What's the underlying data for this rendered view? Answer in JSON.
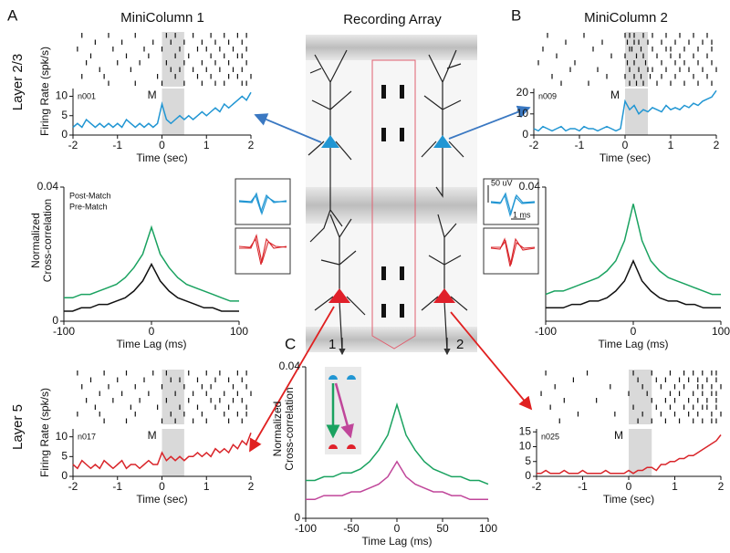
{
  "figure": {
    "panel_a": "A",
    "panel_b": "B",
    "panel_c": "C",
    "minicolumn_1": "MiniColumn 1",
    "minicolumn_2": "MiniColumn 2",
    "array_title": "Recording Array",
    "layer_23": "Layer 2/3",
    "layer_5": "Layer 5",
    "column_1": "1",
    "column_2": "2",
    "scale_voltage": "50 uV",
    "scale_time": "1 ms"
  },
  "chart_data": [
    {
      "type": "raster",
      "xlim": [
        -2,
        2
      ],
      "shade": [
        0,
        0.5
      ],
      "trials": [
        [
          -1.8,
          -1.2,
          -0.6,
          0.1,
          0.3,
          0.7,
          1.1,
          1.4,
          1.7,
          1.9
        ],
        [
          -1.5,
          -0.9,
          -0.2,
          0.2,
          0.5,
          0.9,
          1.2,
          1.5,
          1.8
        ],
        [
          -1.9,
          -1.1,
          -0.4,
          0.0,
          0.4,
          0.8,
          1.0,
          1.3,
          1.6,
          1.9
        ],
        [
          -1.6,
          -0.8,
          -0.3,
          0.3,
          0.6,
          1.1,
          1.4,
          1.7,
          1.8
        ],
        [
          -1.7,
          -1.0,
          -0.5,
          0.1,
          0.5,
          0.9,
          1.2,
          1.5,
          1.9
        ],
        [
          -1.4,
          -0.7,
          0.2,
          0.4,
          0.7,
          1.0,
          1.3,
          1.6,
          1.8
        ],
        [
          -1.8,
          -1.3,
          -0.1,
          0.3,
          0.8,
          1.1,
          1.5,
          1.7,
          2.0
        ],
        [
          -1.2,
          -0.6,
          0.0,
          0.5,
          0.9,
          1.2,
          1.4,
          1.8,
          1.9
        ]
      ]
    },
    {
      "type": "line",
      "ylabel": "Firing Rate (spk/s)",
      "xlabel": "Time (sec)",
      "unit_label": "n001",
      "event_label": "M",
      "shade": [
        0,
        0.5
      ],
      "xlim": [
        -2,
        2
      ],
      "ylim": [
        0,
        12
      ],
      "xticks": [
        -2,
        -1,
        0,
        1,
        2
      ],
      "yticks": [
        0,
        5,
        10
      ],
      "x": [
        -2,
        -1.9,
        -1.8,
        -1.7,
        -1.6,
        -1.5,
        -1.4,
        -1.3,
        -1.2,
        -1.1,
        -1,
        -0.9,
        -0.8,
        -0.7,
        -0.6,
        -0.5,
        -0.4,
        -0.3,
        -0.2,
        -0.1,
        0,
        0.1,
        0.2,
        0.3,
        0.4,
        0.5,
        0.6,
        0.7,
        0.8,
        0.9,
        1,
        1.1,
        1.2,
        1.3,
        1.4,
        1.5,
        1.6,
        1.7,
        1.8,
        1.9,
        2
      ],
      "series": [
        {
          "color": "#2196d3",
          "values": [
            2,
            3,
            2,
            4,
            3,
            2,
            3,
            2,
            3,
            2,
            3,
            2,
            4,
            3,
            2,
            3,
            2,
            3,
            2,
            3,
            8,
            4,
            3,
            4,
            5,
            4,
            5,
            4,
            5,
            6,
            5,
            6,
            7,
            6,
            8,
            7,
            8,
            9,
            10,
            9,
            11
          ]
        }
      ]
    },
    {
      "type": "line",
      "ylabel": [
        "Normalized",
        "Cross-correlation"
      ],
      "xlabel": "Time Lag (ms)",
      "xlim": [
        -100,
        100
      ],
      "ylim": [
        0,
        0.04
      ],
      "xticks": [
        -100,
        0,
        100
      ],
      "yticks": [
        0,
        0.04
      ],
      "x": [
        -100,
        -90,
        -80,
        -70,
        -60,
        -50,
        -40,
        -30,
        -20,
        -10,
        0,
        10,
        20,
        30,
        40,
        50,
        60,
        70,
        80,
        90,
        100
      ],
      "series": [
        {
          "name": "Post-Match",
          "color": "#1aa260",
          "values": [
            0.007,
            0.007,
            0.008,
            0.008,
            0.009,
            0.01,
            0.011,
            0.013,
            0.016,
            0.02,
            0.028,
            0.02,
            0.016,
            0.013,
            0.011,
            0.01,
            0.009,
            0.008,
            0.007,
            0.006,
            0.006
          ]
        },
        {
          "name": "Pre-Match",
          "color": "#111111",
          "values": [
            0.003,
            0.003,
            0.004,
            0.004,
            0.005,
            0.005,
            0.006,
            0.007,
            0.009,
            0.012,
            0.017,
            0.012,
            0.009,
            0.007,
            0.006,
            0.005,
            0.004,
            0.004,
            0.003,
            0.003,
            0.003
          ]
        }
      ]
    },
    {
      "type": "raster",
      "xlim": [
        -2,
        2
      ],
      "shade": [
        0,
        0.5
      ],
      "trials": [
        [
          -1.7,
          -0.9,
          0.0,
          0.1,
          0.2,
          0.4,
          0.6,
          0.9,
          1.2,
          1.5,
          1.8
        ],
        [
          -1.3,
          -0.5,
          0.05,
          0.2,
          0.3,
          0.5,
          0.8,
          1.1,
          1.4,
          1.7,
          1.9
        ],
        [
          -1.8,
          -0.7,
          0.1,
          0.15,
          0.35,
          0.6,
          0.9,
          1.0,
          1.3,
          1.6,
          1.9
        ],
        [
          -1.5,
          -0.3,
          0.0,
          0.25,
          0.4,
          0.7,
          1.0,
          1.2,
          1.5,
          1.8
        ],
        [
          -1.9,
          -1.1,
          0.05,
          0.2,
          0.45,
          0.8,
          1.1,
          1.3,
          1.6,
          1.9
        ],
        [
          -1.2,
          -0.6,
          0.1,
          0.3,
          0.5,
          0.6,
          0.9,
          1.2,
          1.4,
          1.7,
          2.0
        ],
        [
          -1.6,
          -0.4,
          0.0,
          0.2,
          0.35,
          0.55,
          0.8,
          1.1,
          1.5,
          1.8
        ],
        [
          -1.4,
          -0.8,
          0.1,
          0.25,
          0.4,
          0.7,
          1.0,
          1.3,
          1.6,
          1.9
        ]
      ]
    },
    {
      "type": "line",
      "unit_label": "n009",
      "event_label": "M",
      "xlabel": "Time (sec)",
      "shade": [
        0,
        0.5
      ],
      "xlim": [
        -2,
        2
      ],
      "ylim": [
        0,
        22
      ],
      "xticks": [
        -2,
        -1,
        0,
        1,
        2
      ],
      "yticks": [
        0,
        10,
        20
      ],
      "x": [
        -2,
        -1.9,
        -1.8,
        -1.7,
        -1.6,
        -1.5,
        -1.4,
        -1.3,
        -1.2,
        -1.1,
        -1,
        -0.9,
        -0.8,
        -0.7,
        -0.6,
        -0.5,
        -0.4,
        -0.3,
        -0.2,
        -0.1,
        0,
        0.1,
        0.2,
        0.3,
        0.4,
        0.5,
        0.6,
        0.7,
        0.8,
        0.9,
        1,
        1.1,
        1.2,
        1.3,
        1.4,
        1.5,
        1.6,
        1.7,
        1.8,
        1.9,
        2
      ],
      "series": [
        {
          "color": "#2196d3",
          "values": [
            3,
            2,
            4,
            3,
            2,
            3,
            4,
            2,
            3,
            3,
            2,
            4,
            3,
            3,
            2,
            3,
            4,
            3,
            2,
            3,
            16,
            12,
            14,
            10,
            12,
            11,
            13,
            12,
            11,
            14,
            12,
            13,
            12,
            14,
            13,
            15,
            14,
            16,
            17,
            18,
            21
          ]
        }
      ]
    },
    {
      "type": "line",
      "xlabel": "Time Lag (ms)",
      "xlim": [
        -100,
        100
      ],
      "ylim": [
        0,
        0.04
      ],
      "xticks": [
        -100,
        0,
        100
      ],
      "yticks": [
        0.04
      ],
      "x": [
        -100,
        -90,
        -80,
        -70,
        -60,
        -50,
        -40,
        -30,
        -20,
        -10,
        0,
        10,
        20,
        30,
        40,
        50,
        60,
        70,
        80,
        90,
        100
      ],
      "series": [
        {
          "color": "#1aa260",
          "values": [
            0.008,
            0.009,
            0.009,
            0.01,
            0.011,
            0.012,
            0.013,
            0.015,
            0.018,
            0.024,
            0.035,
            0.024,
            0.018,
            0.015,
            0.013,
            0.012,
            0.011,
            0.01,
            0.009,
            0.008,
            0.008
          ]
        },
        {
          "color": "#111111",
          "values": [
            0.004,
            0.004,
            0.004,
            0.005,
            0.005,
            0.006,
            0.006,
            0.007,
            0.009,
            0.012,
            0.018,
            0.012,
            0.009,
            0.007,
            0.006,
            0.006,
            0.005,
            0.005,
            0.004,
            0.004,
            0.004
          ]
        }
      ]
    },
    {
      "type": "line",
      "ylabel": [
        "Normalized",
        "Cross-correlation"
      ],
      "xlabel": "Time Lag (ms)",
      "xlim": [
        -100,
        100
      ],
      "ylim": [
        0,
        0.04
      ],
      "xticks": [
        -100,
        -50,
        0,
        50,
        100
      ],
      "yticks": [
        0,
        0.04
      ],
      "x": [
        -100,
        -90,
        -80,
        -70,
        -60,
        -50,
        -40,
        -30,
        -20,
        -10,
        0,
        10,
        20,
        30,
        40,
        50,
        60,
        70,
        80,
        90,
        100
      ],
      "series": [
        {
          "color": "#1aa260",
          "values": [
            0.01,
            0.01,
            0.011,
            0.011,
            0.012,
            0.012,
            0.013,
            0.015,
            0.018,
            0.022,
            0.03,
            0.022,
            0.018,
            0.015,
            0.013,
            0.012,
            0.011,
            0.011,
            0.01,
            0.01,
            0.009
          ]
        },
        {
          "color": "#c0469a",
          "values": [
            0.005,
            0.005,
            0.006,
            0.006,
            0.006,
            0.007,
            0.007,
            0.008,
            0.009,
            0.011,
            0.015,
            0.011,
            0.009,
            0.008,
            0.007,
            0.007,
            0.006,
            0.006,
            0.005,
            0.005,
            0.005
          ]
        }
      ]
    },
    {
      "type": "raster",
      "xlim": [
        -2,
        2
      ],
      "shade": [
        0,
        0.5
      ],
      "trials": [
        [
          -1.9,
          -1.3,
          -0.8,
          -0.2,
          0.1,
          0.6,
          1.0,
          1.3,
          1.7,
          1.9
        ],
        [
          -1.6,
          -1.0,
          -0.4,
          0.2,
          0.4,
          0.8,
          1.2,
          1.5,
          1.8
        ],
        [
          -1.8,
          -1.2,
          -0.6,
          0.0,
          0.5,
          0.9,
          1.1,
          1.6,
          1.9
        ],
        [
          -1.4,
          -0.9,
          -0.3,
          0.3,
          0.7,
          1.0,
          1.4,
          1.7,
          2.0
        ],
        [
          -1.7,
          -1.1,
          -0.5,
          0.1,
          0.6,
          1.1,
          1.3,
          1.6,
          1.8
        ],
        [
          -1.5,
          -0.7,
          -0.1,
          0.4,
          0.8,
          1.2,
          1.5,
          1.9
        ],
        [
          -1.9,
          -1.4,
          -0.6,
          0.2,
          0.5,
          0.9,
          1.4,
          1.7,
          1.9
        ],
        [
          -1.3,
          -0.8,
          0.0,
          0.3,
          0.7,
          1.0,
          1.5,
          1.8
        ]
      ]
    },
    {
      "type": "line",
      "ylabel": "Firing Rate (spk/s)",
      "xlabel": "Time (sec)",
      "unit_label": "n017",
      "event_label": "M",
      "shade": [
        0,
        0.5
      ],
      "xlim": [
        -2,
        2
      ],
      "ylim": [
        0,
        12
      ],
      "xticks": [
        -2,
        -1,
        0,
        1,
        2
      ],
      "yticks": [
        0,
        5,
        10
      ],
      "x": [
        -2,
        -1.9,
        -1.8,
        -1.7,
        -1.6,
        -1.5,
        -1.4,
        -1.3,
        -1.2,
        -1.1,
        -1,
        -0.9,
        -0.8,
        -0.7,
        -0.6,
        -0.5,
        -0.4,
        -0.3,
        -0.2,
        -0.1,
        0,
        0.1,
        0.2,
        0.3,
        0.4,
        0.5,
        0.6,
        0.7,
        0.8,
        0.9,
        1,
        1.1,
        1.2,
        1.3,
        1.4,
        1.5,
        1.6,
        1.7,
        1.8,
        1.9,
        2
      ],
      "series": [
        {
          "color": "#d9252a",
          "values": [
            3,
            2,
            4,
            3,
            2,
            3,
            2,
            4,
            3,
            2,
            3,
            4,
            2,
            3,
            3,
            2,
            3,
            4,
            3,
            3,
            6,
            4,
            5,
            4,
            5,
            4,
            5,
            5,
            6,
            5,
            6,
            5,
            7,
            6,
            7,
            6,
            8,
            7,
            9,
            8,
            11
          ]
        }
      ]
    },
    {
      "type": "raster",
      "xlim": [
        -2,
        2
      ],
      "shade": [
        0,
        0.5
      ],
      "trials": [
        [
          -1.8,
          -0.9,
          0.1,
          0.5,
          0.9,
          1.2,
          1.4,
          1.6,
          1.8,
          1.9
        ],
        [
          -1.2,
          0.2,
          0.6,
          0.8,
          1.1,
          1.3,
          1.5,
          1.7,
          1.9
        ],
        [
          -1.6,
          -0.4,
          0.3,
          0.7,
          1.0,
          1.2,
          1.5,
          1.6,
          1.8,
          2.0
        ],
        [
          -1.9,
          0.0,
          0.4,
          0.9,
          1.1,
          1.4,
          1.6,
          1.8,
          1.9
        ],
        [
          -1.4,
          -0.7,
          0.5,
          0.8,
          1.0,
          1.3,
          1.5,
          1.7,
          1.9
        ],
        [
          -1.7,
          0.1,
          0.6,
          0.9,
          1.2,
          1.4,
          1.6,
          1.7,
          1.9
        ],
        [
          -1.1,
          -0.3,
          0.3,
          0.7,
          1.0,
          1.3,
          1.5,
          1.8,
          2.0
        ],
        [
          -1.5,
          0.2,
          0.5,
          0.8,
          1.1,
          1.4,
          1.6,
          1.8,
          1.9
        ]
      ]
    },
    {
      "type": "line",
      "xlabel": "Time (sec)",
      "unit_label": "n025",
      "event_label": "M",
      "shade": [
        0,
        0.5
      ],
      "xlim": [
        -2,
        2
      ],
      "ylim": [
        0,
        16
      ],
      "xticks": [
        -2,
        -1,
        0,
        1,
        2
      ],
      "yticks": [
        0,
        5,
        10,
        15
      ],
      "x": [
        -2,
        -1.9,
        -1.8,
        -1.7,
        -1.6,
        -1.5,
        -1.4,
        -1.3,
        -1.2,
        -1.1,
        -1,
        -0.9,
        -0.8,
        -0.7,
        -0.6,
        -0.5,
        -0.4,
        -0.3,
        -0.2,
        -0.1,
        0,
        0.1,
        0.2,
        0.3,
        0.4,
        0.5,
        0.6,
        0.7,
        0.8,
        0.9,
        1,
        1.1,
        1.2,
        1.3,
        1.4,
        1.5,
        1.6,
        1.7,
        1.8,
        1.9,
        2
      ],
      "series": [
        {
          "color": "#d9252a",
          "values": [
            1,
            1,
            2,
            1,
            1,
            1,
            2,
            1,
            1,
            1,
            2,
            1,
            1,
            1,
            1,
            2,
            1,
            1,
            1,
            1,
            2,
            1,
            2,
            2,
            3,
            3,
            2,
            4,
            4,
            5,
            5,
            6,
            6,
            7,
            7,
            8,
            9,
            10,
            11,
            12,
            14
          ]
        }
      ]
    }
  ]
}
